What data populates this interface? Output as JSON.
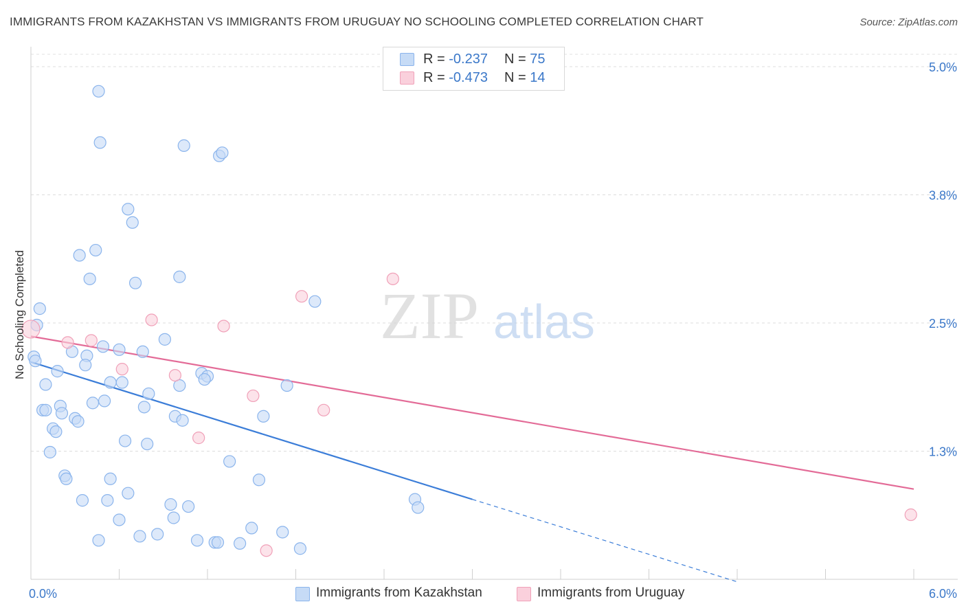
{
  "title": "IMMIGRANTS FROM KAZAKHSTAN VS IMMIGRANTS FROM URUGUAY NO SCHOOLING COMPLETED CORRELATION CHART",
  "source": "Source: ZipAtlas.com",
  "watermark": {
    "zip": "ZIP",
    "atlas": "atlas"
  },
  "legend": {
    "r_label": "R =",
    "n_label": "N =",
    "rows": [
      {
        "r": "-0.237",
        "n": "75",
        "color": "#8ab4ec",
        "fill": "#c6dbf6"
      },
      {
        "r": "-0.473",
        "n": "14",
        "color": "#f0a0b8",
        "fill": "#fad0dc"
      }
    ]
  },
  "bottom_legend": [
    "Immigrants from Kazakhstan",
    "Immigrants from Uruguay"
  ],
  "chart_data": {
    "type": "scatter",
    "xlabel": "",
    "ylabel": "No Schooling Completed",
    "xlim": [
      0,
      6.0
    ],
    "ylim": [
      0,
      5.0
    ],
    "x_tick_labels": [
      "0.0%",
      "6.0%"
    ],
    "y_tick_labels": [
      "1.3%",
      "2.5%",
      "3.8%",
      "5.0%"
    ],
    "y_ticks": [
      1.25,
      2.5,
      3.75,
      5.0
    ],
    "grid": true,
    "series": [
      {
        "name": "Immigrants from Kazakhstan",
        "color": "#3b7dd8",
        "marker_fill": "#c6dbf6",
        "marker_stroke": "#8ab4ec",
        "trend": {
          "x0": 0.0,
          "y0": 2.12,
          "x1": 3.0,
          "y1": 0.78,
          "dash_to_x": 4.8
        },
        "points": [
          [
            0.46,
            4.76
          ],
          [
            0.47,
            4.26
          ],
          [
            1.04,
            4.23
          ],
          [
            1.28,
            4.13
          ],
          [
            1.3,
            4.16
          ],
          [
            0.66,
            3.61
          ],
          [
            0.69,
            3.48
          ],
          [
            0.44,
            3.21
          ],
          [
            0.33,
            3.16
          ],
          [
            1.01,
            2.95
          ],
          [
            0.4,
            2.93
          ],
          [
            0.71,
            2.89
          ],
          [
            1.93,
            2.71
          ],
          [
            0.06,
            2.64
          ],
          [
            0.04,
            2.48
          ],
          [
            0.91,
            2.34
          ],
          [
            0.49,
            2.27
          ],
          [
            0.6,
            2.24
          ],
          [
            0.28,
            2.22
          ],
          [
            0.76,
            2.22
          ],
          [
            0.38,
            2.18
          ],
          [
            0.02,
            2.17
          ],
          [
            0.03,
            2.13
          ],
          [
            0.37,
            2.09
          ],
          [
            0.18,
            2.03
          ],
          [
            1.16,
            2.01
          ],
          [
            1.2,
            1.98
          ],
          [
            1.18,
            1.95
          ],
          [
            0.54,
            1.92
          ],
          [
            0.62,
            1.92
          ],
          [
            0.1,
            1.9
          ],
          [
            1.01,
            1.89
          ],
          [
            1.74,
            1.89
          ],
          [
            0.8,
            1.81
          ],
          [
            0.5,
            1.74
          ],
          [
            0.42,
            1.72
          ],
          [
            0.2,
            1.69
          ],
          [
            0.77,
            1.68
          ],
          [
            0.08,
            1.65
          ],
          [
            0.1,
            1.65
          ],
          [
            0.21,
            1.62
          ],
          [
            0.98,
            1.59
          ],
          [
            1.58,
            1.59
          ],
          [
            0.3,
            1.57
          ],
          [
            0.32,
            1.54
          ],
          [
            1.03,
            1.55
          ],
          [
            0.15,
            1.47
          ],
          [
            0.17,
            1.44
          ],
          [
            0.64,
            1.35
          ],
          [
            0.79,
            1.32
          ],
          [
            0.13,
            1.24
          ],
          [
            1.35,
            1.15
          ],
          [
            0.23,
            1.01
          ],
          [
            0.24,
            0.98
          ],
          [
            0.54,
            0.98
          ],
          [
            1.55,
            0.97
          ],
          [
            0.66,
            0.84
          ],
          [
            2.61,
            0.78
          ],
          [
            0.35,
            0.77
          ],
          [
            0.52,
            0.77
          ],
          [
            0.95,
            0.73
          ],
          [
            1.07,
            0.71
          ],
          [
            2.63,
            0.7
          ],
          [
            0.6,
            0.58
          ],
          [
            0.97,
            0.6
          ],
          [
            1.5,
            0.5
          ],
          [
            1.71,
            0.46
          ],
          [
            0.86,
            0.44
          ],
          [
            0.74,
            0.42
          ],
          [
            1.13,
            0.38
          ],
          [
            1.25,
            0.36
          ],
          [
            1.27,
            0.36
          ],
          [
            1.42,
            0.35
          ],
          [
            1.83,
            0.3
          ],
          [
            0.46,
            0.38
          ]
        ]
      },
      {
        "name": "Immigrants from Uruguay",
        "color": "#e36b97",
        "marker_fill": "#fad0dc",
        "marker_stroke": "#f0a0b8",
        "trend": {
          "x0": 0.0,
          "y0": 2.37,
          "x1": 6.0,
          "y1": 0.88
        },
        "points": [
          [
            0.0,
            2.44
          ],
          [
            2.46,
            2.93
          ],
          [
            1.84,
            2.76
          ],
          [
            0.82,
            2.53
          ],
          [
            1.31,
            2.47
          ],
          [
            0.25,
            2.31
          ],
          [
            0.41,
            2.33
          ],
          [
            0.62,
            2.05
          ],
          [
            0.98,
            1.99
          ],
          [
            1.51,
            1.79
          ],
          [
            1.99,
            1.65
          ],
          [
            1.14,
            1.38
          ],
          [
            1.6,
            0.28
          ],
          [
            5.98,
            0.63
          ]
        ]
      }
    ]
  }
}
